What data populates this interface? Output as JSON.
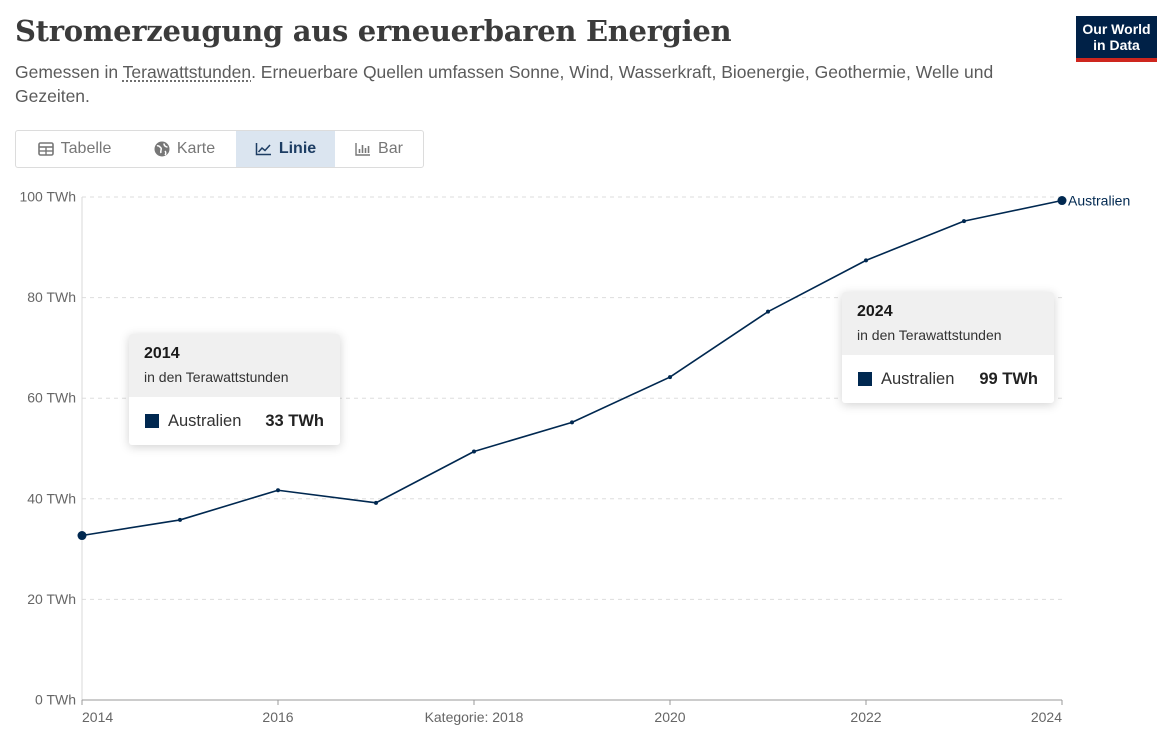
{
  "header": {
    "title": "Stromerzeugung aus erneuerbaren Energien",
    "subtitle_prefix": "Gemessen in ",
    "subtitle_unit": "Terawattstunden",
    "subtitle_suffix": ". Erneuerbare Quellen umfassen Sonne, Wind, Wasserkraft, Bioenergie, Geothermie, Welle und Gezeiten."
  },
  "logo": {
    "line1": "Our World",
    "line2": "in Data"
  },
  "tabs": [
    {
      "label": "Tabelle",
      "icon": "table-icon",
      "active": false
    },
    {
      "label": "Karte",
      "icon": "globe-icon",
      "active": false
    },
    {
      "label": "Linie",
      "icon": "line-chart-icon",
      "active": true
    },
    {
      "label": "Bar",
      "icon": "bar-chart-icon",
      "active": false
    }
  ],
  "chart_data": {
    "type": "line",
    "title": "Stromerzeugung aus erneuerbaren Energien",
    "xlabel": "Kategorie: 2018",
    "ylabel": "",
    "x": [
      2014,
      2015,
      2016,
      2017,
      2018,
      2019,
      2020,
      2021,
      2022,
      2023,
      2024
    ],
    "series": [
      {
        "name": "Australien",
        "color": "#002850",
        "values": [
          32.7,
          35.8,
          41.7,
          39.2,
          49.4,
          55.2,
          64.2,
          77.2,
          87.4,
          95.2,
          99.3
        ]
      }
    ],
    "ylim": [
      0,
      100
    ],
    "y_ticks": [
      {
        "value": 0,
        "label": "0 TWh"
      },
      {
        "value": 20,
        "label": "20 TWh"
      },
      {
        "value": 40,
        "label": "40 TWh"
      },
      {
        "value": 60,
        "label": "60 TWh"
      },
      {
        "value": 80,
        "label": "80 TWh"
      },
      {
        "value": 100,
        "label": "100 TWh"
      }
    ],
    "x_ticks": [
      {
        "value": 2014,
        "label": "2014"
      },
      {
        "value": 2016,
        "label": "2016"
      },
      {
        "value": 2018,
        "label": "Kategorie: 2018"
      },
      {
        "value": 2020,
        "label": "2020"
      },
      {
        "value": 2022,
        "label": "2022"
      },
      {
        "value": 2024,
        "label": "2024"
      }
    ],
    "end_label": "Australien",
    "grid": "horizontal dashed"
  },
  "tooltips": [
    {
      "year": "2014",
      "unit": "in den Terawattstunden",
      "entity": "Australien",
      "value": "33 TWh"
    },
    {
      "year": "2024",
      "unit": "in den Terawattstunden",
      "entity": "Australien",
      "value": "99 TWh"
    }
  ]
}
